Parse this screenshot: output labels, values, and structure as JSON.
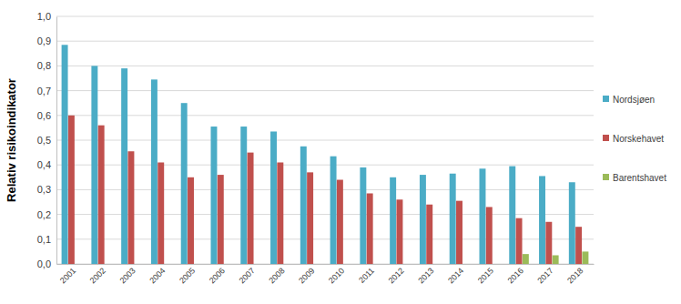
{
  "chart_data": {
    "type": "bar",
    "y_label": "Relativ risikoindikator",
    "categories": [
      "2001",
      "2002",
      "2003",
      "2004",
      "2005",
      "2006",
      "2007",
      "2008",
      "2009",
      "2010",
      "2011",
      "2012",
      "2013",
      "2014",
      "2015",
      "2016",
      "2017",
      "2018"
    ],
    "series": [
      {
        "name": "Nordsjøen",
        "color": "#4bacc6",
        "values": [
          0.885,
          0.8,
          0.79,
          0.745,
          0.65,
          0.555,
          0.555,
          0.535,
          0.475,
          0.435,
          0.39,
          0.35,
          0.36,
          0.365,
          0.385,
          0.395,
          0.355,
          0.33
        ]
      },
      {
        "name": "Norskehavet",
        "color": "#c0504d",
        "values": [
          0.6,
          0.56,
          0.455,
          0.41,
          0.35,
          0.36,
          0.45,
          0.41,
          0.37,
          0.34,
          0.285,
          0.26,
          0.24,
          0.255,
          0.23,
          0.185,
          0.17,
          0.15
        ]
      },
      {
        "name": "Barentshavet",
        "color": "#9bbb59",
        "values": [
          null,
          null,
          null,
          null,
          null,
          null,
          null,
          null,
          null,
          null,
          null,
          null,
          null,
          null,
          null,
          0.04,
          0.035,
          0.05
        ]
      }
    ],
    "ylim": [
      0,
      1.0
    ],
    "yticks": [
      {
        "value": 0,
        "label": "0,0"
      },
      {
        "value": 0.1,
        "label": "0,1"
      },
      {
        "value": 0.2,
        "label": "0,2"
      },
      {
        "value": 0.3,
        "label": "0,3"
      },
      {
        "value": 0.4,
        "label": "0,4"
      },
      {
        "value": 0.5,
        "label": "0,5"
      },
      {
        "value": 0.6,
        "label": "0,6"
      },
      {
        "value": 0.7,
        "label": "0,7"
      },
      {
        "value": 0.8,
        "label": "0,8"
      },
      {
        "value": 0.9,
        "label": "0,9"
      },
      {
        "value": 1.0,
        "label": "1,0"
      }
    ],
    "grid": true,
    "legend": "right"
  }
}
